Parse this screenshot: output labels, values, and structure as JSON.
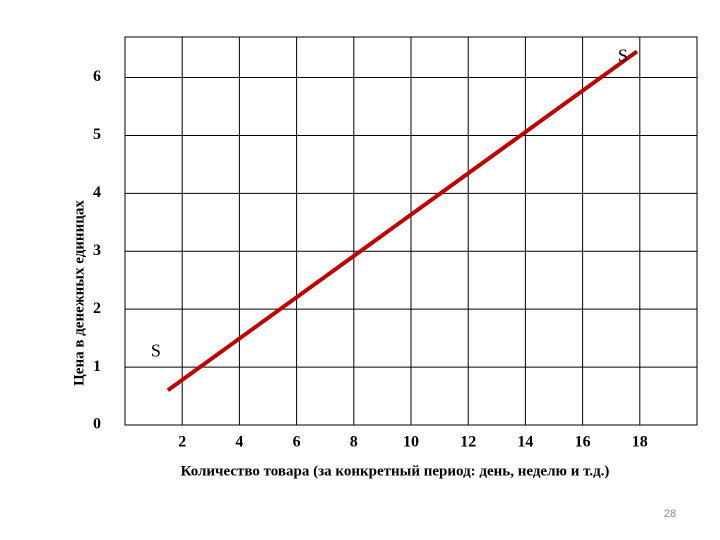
{
  "chart_data": {
    "type": "line",
    "x_label": "Количество товара (за конкретный период: день, неделю и т.д.)",
    "y_label": "Цена в денежных единицах",
    "x": [
      1.5,
      17.9
    ],
    "values": [
      0.6,
      6.45
    ],
    "color": "#c00000",
    "annotations": [
      "S",
      "S"
    ],
    "xlim": [
      0,
      20
    ],
    "xticks": [
      2,
      4,
      6,
      8,
      10,
      12,
      14,
      16,
      18
    ],
    "ylim": [
      0,
      6.7
    ],
    "yticks": [
      0,
      1,
      2,
      3,
      4,
      5,
      6
    ],
    "grid": true
  },
  "page_number": "28"
}
